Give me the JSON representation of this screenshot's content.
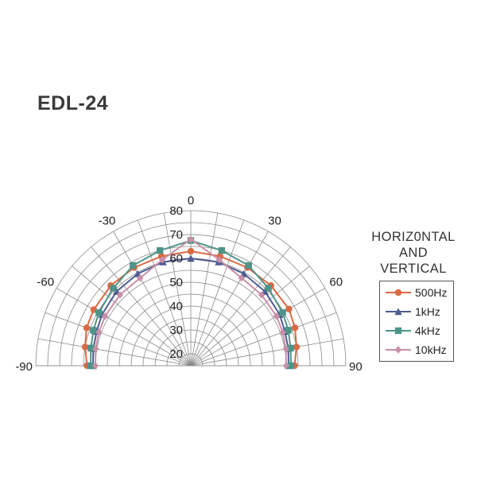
{
  "chart_data": {
    "type": "polar",
    "title": "EDL-24",
    "angle_ticks": [
      -90,
      -60,
      -30,
      0,
      30,
      60,
      90
    ],
    "angle_tick_labels": [
      "-90",
      "-60",
      "-30",
      "0",
      "30",
      "60",
      "90"
    ],
    "radial_ticks": [
      20,
      30,
      40,
      50,
      60,
      70,
      80
    ],
    "radial_tick_labels": [
      "20",
      "30",
      "40",
      "50",
      "60",
      "70",
      "80"
    ],
    "r_range": [
      15,
      80
    ],
    "angle_step_grid": 10,
    "legend": {
      "heading": [
        "HORIZ0NTAL",
        "AND",
        "VERTICAL"
      ],
      "placement": "right"
    },
    "series": [
      {
        "name": "500Hz",
        "color": "#d96a45",
        "marker": "circle",
        "angles": [
          -90,
          -80,
          -70,
          -60,
          -45,
          -30,
          -15,
          0,
          15,
          30,
          45,
          60,
          70,
          80,
          90
        ],
        "values": [
          58.5,
          60.0,
          61.5,
          62.0,
          62.5,
          62.5,
          62.5,
          63.0,
          62.5,
          62.5,
          62.5,
          62.5,
          61.5,
          60.0,
          58.5
        ]
      },
      {
        "name": "1kHz",
        "color": "#4d5c8f",
        "marker": "triangle",
        "angles": [
          -90,
          -80,
          -70,
          -60,
          -45,
          -30,
          -15,
          0,
          15,
          30,
          45,
          60,
          70,
          80,
          90
        ],
        "values": [
          56.0,
          56.5,
          57.0,
          58.0,
          59.0,
          59.5,
          60.0,
          60.0,
          60.0,
          59.5,
          59.0,
          58.0,
          57.0,
          56.5,
          56.0
        ]
      },
      {
        "name": "4kHz",
        "color": "#4e9488",
        "marker": "square",
        "angles": [
          -90,
          -80,
          -70,
          -60,
          -45,
          -30,
          -15,
          0,
          15,
          30,
          45,
          60,
          70,
          80,
          90
        ],
        "values": [
          57.0,
          57.5,
          58.5,
          59.5,
          61.0,
          63.5,
          65.0,
          67.5,
          65.0,
          63.5,
          61.0,
          59.5,
          58.5,
          57.5,
          57.0
        ]
      },
      {
        "name": "10kHz",
        "color": "#c98fa8",
        "marker": "diamond",
        "angles": [
          -90,
          -80,
          -70,
          -60,
          -45,
          -30,
          -15,
          0,
          15,
          30,
          45,
          60,
          70,
          80,
          90
        ],
        "values": [
          55.0,
          55.5,
          56.0,
          56.5,
          57.0,
          57.5,
          61.0,
          68.0,
          61.0,
          57.5,
          57.0,
          56.5,
          56.0,
          55.5,
          55.0
        ]
      }
    ]
  }
}
